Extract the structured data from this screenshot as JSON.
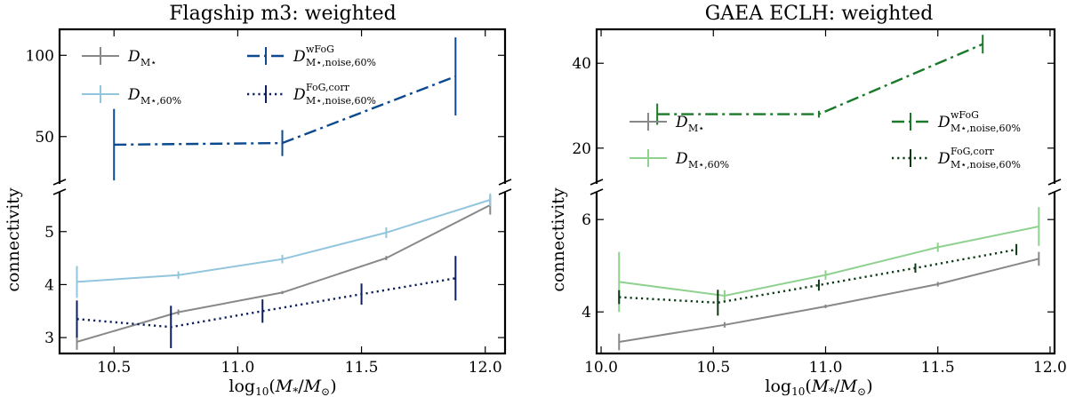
{
  "chart_data": [
    {
      "type": "line",
      "title": "Flagship m3: weighted",
      "xlabel": "log10(M*/M⊙)",
      "ylabel": "connectivity",
      "xlim": [
        10.28,
        12.08
      ],
      "xticks": [
        "10.5",
        "11.0",
        "11.5",
        "12.0"
      ],
      "upper_ylim": [
        22,
        116
      ],
      "upper_yticks": [
        "50",
        "100"
      ],
      "lower_ylim": [
        2.7,
        5.75
      ],
      "lower_yticks": [
        "3",
        "4",
        "5"
      ],
      "series": [
        {
          "name": "D_M*",
          "color": "#888888",
          "style": "solid",
          "panel": "lower",
          "x": [
            10.35,
            10.76,
            11.18,
            11.6,
            12.02
          ],
          "y": [
            2.92,
            3.48,
            3.85,
            4.5,
            5.5
          ],
          "yerr": [
            0.15,
            0.05,
            0.03,
            0.04,
            0.18
          ]
        },
        {
          "name": "D_M*,60%",
          "color": "#92c5de",
          "style": "solid",
          "panel": "lower",
          "x": [
            10.35,
            10.76,
            11.18,
            11.6,
            12.02
          ],
          "y": [
            4.05,
            4.18,
            4.48,
            4.98,
            5.6
          ],
          "yerr": [
            0.3,
            0.07,
            0.08,
            0.1,
            0.12
          ]
        },
        {
          "name": "D^wFoG_M*,noise,60%",
          "color": "#0b4a8f",
          "style": "dashdot",
          "panel": "upper",
          "x": [
            10.5,
            11.18,
            11.88
          ],
          "y": [
            45,
            46,
            87
          ],
          "yerr": [
            22,
            8,
            24
          ]
        },
        {
          "name": "D^FoG,corr_M*,noise,60%",
          "color": "#0d1f5c",
          "style": "dotted",
          "panel": "lower",
          "x": [
            10.35,
            10.73,
            11.1,
            11.5,
            11.88
          ],
          "y": [
            3.35,
            3.2,
            3.5,
            3.82,
            4.12
          ],
          "yerr": [
            0.35,
            0.4,
            0.22,
            0.2,
            0.42
          ]
        }
      ],
      "legend": {
        "position": "top-left",
        "entries": [
          {
            "main": "D",
            "sub": "M⋆",
            "sup": ""
          },
          {
            "main": "D",
            "sub": "M⋆,60%",
            "sup": ""
          },
          {
            "main": "D",
            "sub": "M⋆,noise,60%",
            "sup": "wFoG"
          },
          {
            "main": "D",
            "sub": "M⋆,noise,60%",
            "sup": "FoG,corr"
          }
        ]
      }
    },
    {
      "type": "line",
      "title": "GAEA ECLH: weighted",
      "xlabel": "log10(M*/M⊙)",
      "ylabel": "connectivity",
      "xlim": [
        9.98,
        12.02
      ],
      "xticks": [
        "10.0",
        "10.5",
        "11.0",
        "11.5",
        "12.0"
      ],
      "upper_ylim": [
        12,
        48
      ],
      "upper_yticks": [
        "20",
        "40"
      ],
      "lower_ylim": [
        3.1,
        6.6
      ],
      "lower_yticks": [
        "4",
        "6"
      ],
      "series": [
        {
          "name": "D_M*",
          "color": "#888888",
          "style": "solid",
          "panel": "lower",
          "x": [
            10.08,
            10.55,
            11.0,
            11.5,
            11.95
          ],
          "y": [
            3.35,
            3.72,
            4.12,
            4.6,
            5.15
          ],
          "yerr": [
            0.18,
            0.06,
            0.04,
            0.05,
            0.15
          ]
        },
        {
          "name": "D_M*,60%",
          "color": "#8fd18f",
          "style": "solid",
          "panel": "lower",
          "x": [
            10.08,
            10.55,
            11.0,
            11.5,
            11.95
          ],
          "y": [
            4.65,
            4.35,
            4.8,
            5.4,
            5.85
          ],
          "yerr": [
            0.65,
            0.12,
            0.1,
            0.1,
            0.42
          ]
        },
        {
          "name": "D^wFoG_M*,noise,60%",
          "color": "#1a7a2a",
          "style": "dashdot",
          "panel": "upper",
          "x": [
            10.25,
            10.97,
            11.7
          ],
          "y": [
            28,
            28,
            44.5
          ],
          "yerr": [
            2.5,
            0.8,
            2.2
          ]
        },
        {
          "name": "D^FoG,corr_M*,noise,60%",
          "color": "#0b3a14",
          "style": "dotted",
          "panel": "lower",
          "x": [
            10.08,
            10.52,
            10.97,
            11.4,
            11.85
          ],
          "y": [
            4.32,
            4.2,
            4.58,
            4.95,
            5.35
          ],
          "yerr": [
            0.15,
            0.28,
            0.12,
            0.1,
            0.12
          ]
        }
      ],
      "legend": {
        "position": "top-center",
        "entries": [
          {
            "main": "D",
            "sub": "M⋆",
            "sup": ""
          },
          {
            "main": "D",
            "sub": "M⋆,60%",
            "sup": ""
          },
          {
            "main": "D",
            "sub": "M⋆,noise,60%",
            "sup": "wFoG"
          },
          {
            "main": "D",
            "sub": "M⋆,noise,60%",
            "sup": "FoG,corr"
          }
        ]
      }
    }
  ]
}
